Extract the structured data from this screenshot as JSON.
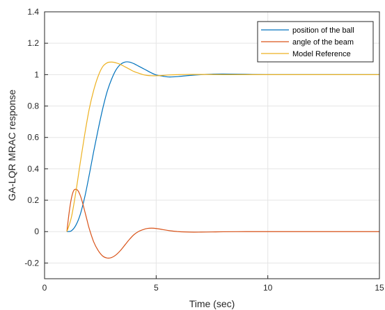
{
  "chart_data": {
    "type": "line",
    "xlabel": "Time (sec)",
    "ylabel": "GA-LQR MRAC response",
    "xlim": [
      0,
      15
    ],
    "ylim": [
      -0.3,
      1.4
    ],
    "grid": true,
    "legend_placement": "top-right",
    "x_ticks": [
      0,
      5,
      10,
      15
    ],
    "x_tick_labels": [
      "0",
      "5",
      "10",
      "15"
    ],
    "y_ticks": [
      -0.2,
      0,
      0.2,
      0.4,
      0.6,
      0.8,
      1.0,
      1.2,
      1.4
    ],
    "y_tick_labels": [
      "-0.2",
      "0",
      "0.2",
      "0.4",
      "0.6",
      "0.8",
      "1",
      "1.2",
      "1.4"
    ],
    "series": [
      {
        "name": "position of the ball",
        "color": "#0072BD",
        "x": [
          1.0,
          1.2,
          1.4,
          1.6,
          1.8,
          2.0,
          2.2,
          2.4,
          2.6,
          2.8,
          3.0,
          3.2,
          3.4,
          3.6,
          3.8,
          4.0,
          4.2,
          4.4,
          4.6,
          4.8,
          5.0,
          5.3,
          5.6,
          6.0,
          6.5,
          7.0,
          7.5,
          8.0,
          9.0,
          10.0,
          11.0,
          12.0,
          13.0,
          14.0,
          15.0
        ],
        "y": [
          0.0,
          0.005,
          0.04,
          0.11,
          0.22,
          0.36,
          0.51,
          0.65,
          0.78,
          0.89,
          0.97,
          1.03,
          1.065,
          1.08,
          1.08,
          1.07,
          1.055,
          1.04,
          1.025,
          1.01,
          0.998,
          0.99,
          0.985,
          0.988,
          0.995,
          1.0,
          1.003,
          1.004,
          1.002,
          1.0,
          1.0,
          1.0,
          1.0,
          1.0,
          1.0
        ]
      },
      {
        "name": "angle of the beam",
        "color": "#D95319",
        "x": [
          1.0,
          1.1,
          1.2,
          1.3,
          1.4,
          1.5,
          1.6,
          1.7,
          1.8,
          1.9,
          2.0,
          2.2,
          2.4,
          2.6,
          2.8,
          3.0,
          3.2,
          3.4,
          3.6,
          3.8,
          4.0,
          4.2,
          4.4,
          4.6,
          4.8,
          5.0,
          5.3,
          5.6,
          6.0,
          6.5,
          7.0,
          7.5,
          8.0,
          9.0,
          10.0,
          11.0,
          12.0,
          13.0,
          14.0,
          15.0
        ],
        "y": [
          0.0,
          0.12,
          0.21,
          0.26,
          0.27,
          0.26,
          0.23,
          0.185,
          0.13,
          0.075,
          0.02,
          -0.065,
          -0.12,
          -0.155,
          -0.168,
          -0.165,
          -0.148,
          -0.12,
          -0.085,
          -0.05,
          -0.02,
          0.0,
          0.012,
          0.02,
          0.022,
          0.02,
          0.013,
          0.006,
          0.0,
          -0.003,
          -0.003,
          -0.002,
          -0.001,
          0.0,
          0.0,
          0.0,
          0.0,
          0.0,
          0.0,
          0.0
        ]
      },
      {
        "name": "Model Reference",
        "color": "#EDB120",
        "x": [
          1.0,
          1.2,
          1.4,
          1.6,
          1.8,
          2.0,
          2.2,
          2.4,
          2.6,
          2.8,
          3.0,
          3.2,
          3.4,
          3.6,
          3.8,
          4.0,
          4.2,
          4.4,
          4.6,
          4.8,
          5.0,
          5.3,
          5.6,
          6.0,
          6.5,
          7.0,
          8.0,
          9.0,
          10.0,
          11.0,
          12.0,
          13.0,
          14.0,
          15.0
        ],
        "y": [
          0.0,
          0.09,
          0.25,
          0.44,
          0.62,
          0.78,
          0.9,
          0.99,
          1.05,
          1.075,
          1.08,
          1.075,
          1.065,
          1.05,
          1.035,
          1.02,
          1.01,
          1.0,
          0.995,
          0.993,
          0.993,
          0.995,
          0.998,
          1.0,
          1.001,
          1.001,
          1.0,
          1.0,
          1.0,
          1.0,
          1.0,
          1.0,
          1.0,
          1.0
        ]
      }
    ]
  }
}
